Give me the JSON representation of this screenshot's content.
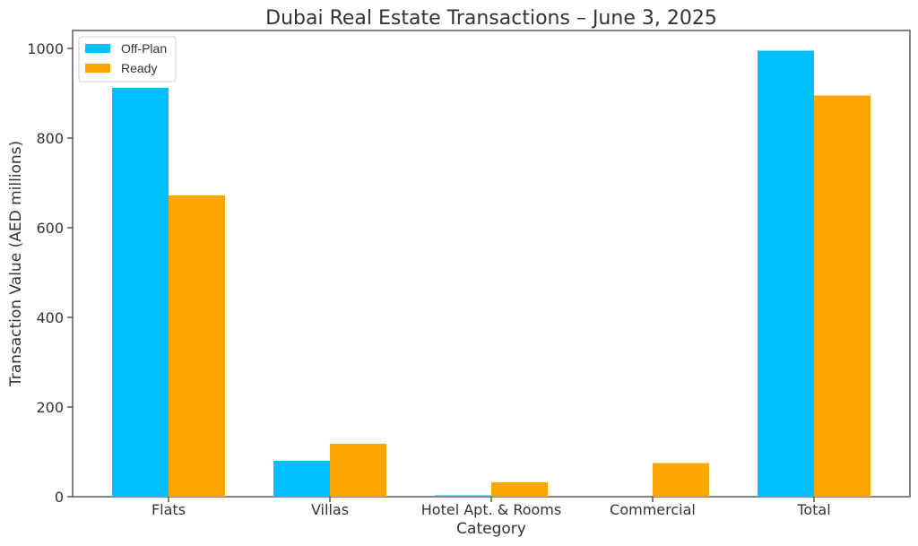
{
  "chart_data": {
    "type": "bar",
    "title": "Dubai Real Estate Transactions – June 3, 2025",
    "xlabel": "Category",
    "ylabel": "Transaction Value (AED millions)",
    "categories": [
      "Flats",
      "Villas",
      "Hotel Apt. & Rooms",
      "Commercial",
      "Total"
    ],
    "series": [
      {
        "name": "Off-Plan",
        "color": "#00BFFF",
        "values": [
          912,
          80,
          3,
          0,
          995
        ]
      },
      {
        "name": "Ready",
        "color": "#FFA500",
        "values": [
          672,
          118,
          32,
          75,
          895
        ]
      }
    ],
    "ylim": [
      0,
      1040
    ],
    "yticks": [
      0,
      200,
      400,
      600,
      800,
      1000
    ],
    "legend_position": "top-left",
    "grid": false
  }
}
